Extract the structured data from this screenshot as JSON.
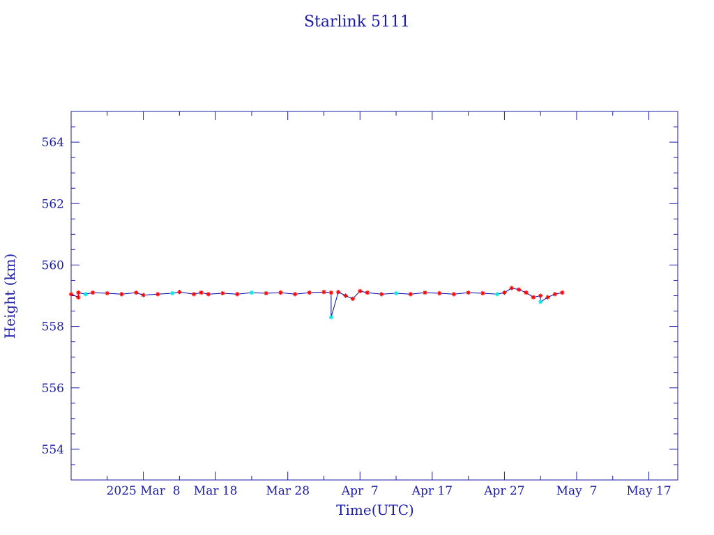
{
  "chart_data": {
    "type": "line",
    "title": "Starlink 5111",
    "xlabel": "Time(UTC)",
    "ylabel": "Height (km)",
    "x_range": [
      "2025-02-26",
      "2025-05-21"
    ],
    "ylim": [
      553,
      565
    ],
    "y_ticks": [
      554,
      556,
      558,
      560,
      562,
      564
    ],
    "x_ticks": [
      {
        "date": "2025-03-08",
        "label": "2025 Mar  8"
      },
      {
        "date": "2025-03-18",
        "label": "Mar 18"
      },
      {
        "date": "2025-03-28",
        "label": "Mar 28"
      },
      {
        "date": "2025-04-07",
        "label": "Apr  7"
      },
      {
        "date": "2025-04-17",
        "label": "Apr 17"
      },
      {
        "date": "2025-04-27",
        "label": "Apr 27"
      },
      {
        "date": "2025-05-07",
        "label": "May  7"
      },
      {
        "date": "2025-05-17",
        "label": "May 17"
      }
    ],
    "grid": false,
    "colors": {
      "axis": "#1a1aa6",
      "line": "#0000aa",
      "marker": "#ff0000",
      "highlight": "#00e5e5"
    },
    "series": [
      {
        "marker": "star",
        "x": [
          "2025-02-26",
          "2025-02-27",
          "2025-02-27",
          "2025-02-28",
          "2025-03-01",
          "2025-03-03",
          "2025-03-05",
          "2025-03-07",
          "2025-03-08",
          "2025-03-10",
          "2025-03-12",
          "2025-03-13",
          "2025-03-15",
          "2025-03-16",
          "2025-03-17",
          "2025-03-19",
          "2025-03-21",
          "2025-03-23",
          "2025-03-25",
          "2025-03-27",
          "2025-03-29",
          "2025-03-31",
          "2025-04-02",
          "2025-04-03",
          "2025-04-03",
          "2025-04-04",
          "2025-04-05",
          "2025-04-06",
          "2025-04-07",
          "2025-04-08",
          "2025-04-10",
          "2025-04-12",
          "2025-04-14",
          "2025-04-16",
          "2025-04-18",
          "2025-04-20",
          "2025-04-22",
          "2025-04-24",
          "2025-04-26",
          "2025-04-27",
          "2025-04-28",
          "2025-04-29",
          "2025-04-30",
          "2025-05-01",
          "2025-05-02",
          "2025-05-02",
          "2025-05-03",
          "2025-05-04",
          "2025-05-05"
        ],
        "y": [
          559.05,
          558.95,
          559.1,
          559.05,
          559.1,
          559.08,
          559.05,
          559.1,
          559.02,
          559.05,
          559.08,
          559.12,
          559.05,
          559.1,
          559.05,
          559.08,
          559.05,
          559.1,
          559.08,
          559.1,
          559.05,
          559.1,
          559.12,
          559.1,
          558.3,
          559.12,
          559.0,
          558.9,
          559.15,
          559.1,
          559.05,
          559.08,
          559.05,
          559.1,
          559.08,
          559.05,
          559.1,
          559.08,
          559.05,
          559.1,
          559.25,
          559.2,
          559.1,
          558.95,
          559.0,
          558.8,
          558.95,
          559.05,
          559.1
        ]
      }
    ]
  }
}
